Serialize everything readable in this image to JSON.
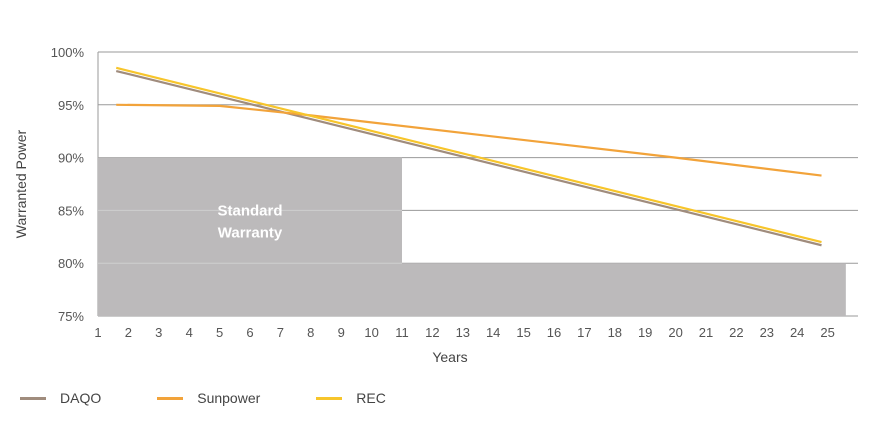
{
  "chart_data": {
    "type": "line",
    "xlabel": "Years",
    "ylabel": "Warranted Power",
    "xlim": [
      1,
      26
    ],
    "ylim": [
      75,
      100
    ],
    "x_ticks": [
      1,
      2,
      3,
      4,
      5,
      6,
      7,
      8,
      9,
      10,
      11,
      12,
      13,
      14,
      15,
      16,
      17,
      18,
      19,
      20,
      21,
      22,
      23,
      24,
      25
    ],
    "y_ticks": [
      75,
      80,
      85,
      90,
      95,
      100
    ],
    "y_tick_labels": [
      "75%",
      "80%",
      "85%",
      "90%",
      "95%",
      "100%"
    ],
    "grid": true,
    "legend_position": "bottom-left",
    "regions": [
      {
        "label_lines": [
          "Standard",
          "Warranty"
        ],
        "steps": [
          {
            "x_from": 1,
            "x_to": 11,
            "y": 90
          },
          {
            "x_from": 11,
            "x_to": 25.6,
            "y": 80
          }
        ],
        "color": "#bcbabb"
      }
    ],
    "series": [
      {
        "name": "DAQO",
        "color": "#a08c7d",
        "points": [
          [
            1.6,
            98.2
          ],
          [
            24.8,
            81.7
          ]
        ]
      },
      {
        "name": "Sunpower",
        "color": "#f2a33a",
        "points": [
          [
            1.6,
            95.0
          ],
          [
            5,
            94.9
          ],
          [
            8,
            94.0
          ],
          [
            20,
            90.0
          ],
          [
            24.8,
            88.3
          ]
        ]
      },
      {
        "name": "REC",
        "color": "#f7c52b",
        "points": [
          [
            1.6,
            98.5
          ],
          [
            24.8,
            82.0
          ]
        ]
      }
    ]
  }
}
